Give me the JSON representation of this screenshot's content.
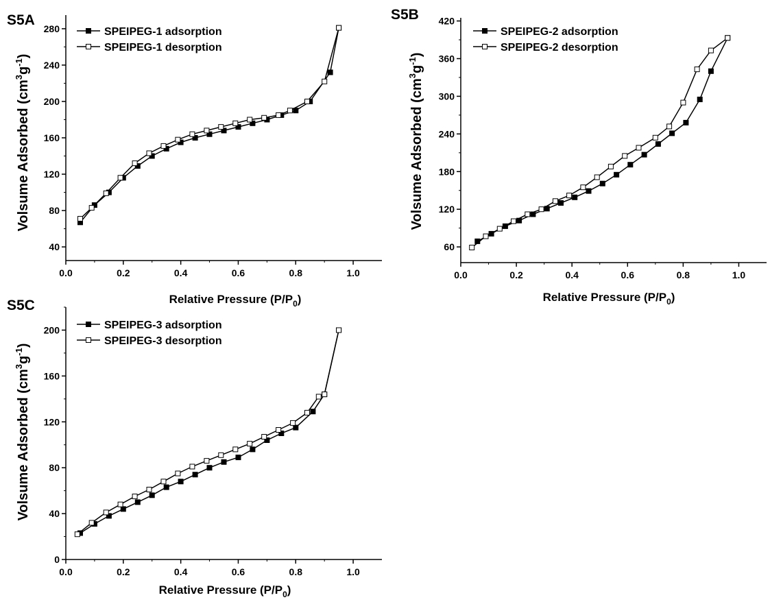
{
  "chart_data": [
    {
      "panel": "S5A",
      "type": "line",
      "xlabel": "Relative Pressure (P/P0)",
      "ylabel": "Volsume Adsorbed (cm3g-1)",
      "xlim": [
        0.0,
        1.1
      ],
      "ylim": [
        25,
        295
      ],
      "xticks": [
        "0.0",
        "0.2",
        "0.4",
        "0.6",
        "0.8",
        "1.0"
      ],
      "yticks": [
        "40",
        "80",
        "120",
        "160",
        "200",
        "240",
        "280"
      ],
      "legend_position": "top-left",
      "series": [
        {
          "name": "SPEIPEG-1 adsorption",
          "marker": "filled-square",
          "x": [
            0.05,
            0.1,
            0.15,
            0.2,
            0.25,
            0.3,
            0.35,
            0.4,
            0.45,
            0.5,
            0.55,
            0.6,
            0.65,
            0.7,
            0.75,
            0.8,
            0.85,
            0.92,
            0.95
          ],
          "y": [
            67,
            86,
            100,
            116,
            129,
            140,
            148,
            155,
            160,
            164,
            168,
            172,
            176,
            180,
            185,
            190,
            200,
            232,
            281
          ]
        },
        {
          "name": "SPEIPEG-1 desorption",
          "marker": "open-square",
          "x": [
            0.95,
            0.9,
            0.84,
            0.78,
            0.74,
            0.69,
            0.64,
            0.59,
            0.54,
            0.49,
            0.44,
            0.39,
            0.34,
            0.29,
            0.24,
            0.19,
            0.14,
            0.09,
            0.05
          ],
          "y": [
            281,
            222,
            200,
            190,
            185,
            182,
            180,
            176,
            172,
            168,
            164,
            158,
            151,
            143,
            132,
            116,
            99,
            83,
            71
          ]
        }
      ]
    },
    {
      "panel": "S5B",
      "type": "line",
      "xlabel": "Relative Pressure (P/P0)",
      "ylabel": "Volsume Adsorbed (cm3g-1)",
      "xlim": [
        0.0,
        1.1
      ],
      "ylim": [
        35,
        425
      ],
      "xticks": [
        "0.0",
        "0.2",
        "0.4",
        "0.6",
        "0.8",
        "1.0"
      ],
      "yticks": [
        "60",
        "120",
        "180",
        "240",
        "300",
        "360",
        "420"
      ],
      "legend_position": "top-left",
      "series": [
        {
          "name": "SPEIPEG-2 adsorption",
          "marker": "filled-square",
          "x": [
            0.06,
            0.11,
            0.16,
            0.21,
            0.26,
            0.31,
            0.36,
            0.41,
            0.46,
            0.51,
            0.56,
            0.61,
            0.66,
            0.71,
            0.76,
            0.81,
            0.86,
            0.9,
            0.96
          ],
          "y": [
            69,
            81,
            93,
            102,
            112,
            121,
            130,
            139,
            149,
            161,
            175,
            191,
            207,
            224,
            241,
            258,
            295,
            340,
            393
          ]
        },
        {
          "name": "SPEIPEG-2 desorption",
          "marker": "open-square",
          "x": [
            0.96,
            0.9,
            0.85,
            0.8,
            0.75,
            0.7,
            0.64,
            0.59,
            0.54,
            0.49,
            0.44,
            0.39,
            0.34,
            0.29,
            0.24,
            0.19,
            0.14,
            0.09,
            0.04
          ],
          "y": [
            393,
            373,
            343,
            290,
            252,
            234,
            218,
            205,
            188,
            171,
            155,
            142,
            133,
            120,
            112,
            101,
            89,
            77,
            59
          ]
        }
      ]
    },
    {
      "panel": "S5C",
      "type": "line",
      "xlabel": "Relative Pressure (P/P0)",
      "ylabel": "Volsume Adsorbed (cm3g-1)",
      "xlim": [
        0.0,
        1.1
      ],
      "ylim": [
        0,
        220
      ],
      "xticks": [
        "0.0",
        "0.2",
        "0.4",
        "0.6",
        "0.8",
        "1.0"
      ],
      "yticks": [
        "0",
        "40",
        "80",
        "120",
        "160",
        "200"
      ],
      "legend_position": "top-left",
      "series": [
        {
          "name": "SPEIPEG-3 adsorption",
          "marker": "filled-square",
          "x": [
            0.05,
            0.1,
            0.15,
            0.2,
            0.25,
            0.3,
            0.35,
            0.4,
            0.45,
            0.5,
            0.55,
            0.6,
            0.65,
            0.7,
            0.75,
            0.8,
            0.86,
            0.9,
            0.95
          ],
          "y": [
            23,
            31,
            38,
            44,
            50,
            56,
            63,
            68,
            74,
            80,
            85,
            89,
            96,
            104,
            110,
            115,
            129,
            144,
            200
          ]
        },
        {
          "name": "SPEIPEG-3 desorption",
          "marker": "open-square",
          "x": [
            0.95,
            0.9,
            0.88,
            0.84,
            0.79,
            0.74,
            0.69,
            0.64,
            0.59,
            0.54,
            0.49,
            0.44,
            0.39,
            0.34,
            0.29,
            0.24,
            0.19,
            0.14,
            0.09,
            0.04
          ],
          "y": [
            200,
            144,
            142,
            128,
            119,
            113,
            107,
            101,
            96,
            91,
            86,
            81,
            75,
            68,
            61,
            55,
            48,
            41,
            32,
            22
          ]
        }
      ]
    }
  ],
  "panels": [
    {
      "label": "S5A",
      "xtitle_main": "Relative Pressure (P/P",
      "xtitle_sub": "0",
      "xtitle_end": ")",
      "ytitle_a": "Volsume Adsorbed (cm",
      "ytitle_sup1": "3",
      "ytitle_b": "g",
      "ytitle_sup2": "-1",
      "ytitle_c": ")"
    },
    {
      "label": "S5B",
      "xtitle_main": "Relative Pressure (P/P",
      "xtitle_sub": "0",
      "xtitle_end": ")",
      "ytitle_a": "Volsume Adsorbed (cm",
      "ytitle_sup1": "3",
      "ytitle_b": "g",
      "ytitle_sup2": "-1",
      "ytitle_c": ")"
    },
    {
      "label": "S5C",
      "xtitle_main": "Relative Pressure (P/P",
      "xtitle_sub": "0",
      "xtitle_end": ")",
      "ytitle_a": "Volsume Adsorbed (cm",
      "ytitle_sup1": "3",
      "ytitle_b": "g",
      "ytitle_sup2": "-1",
      "ytitle_c": ")"
    }
  ]
}
